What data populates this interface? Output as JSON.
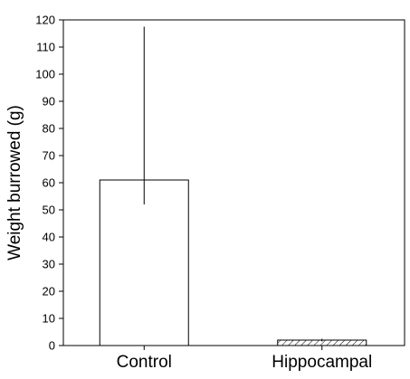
{
  "chart_data": {
    "type": "bar",
    "title": "",
    "xlabel": "",
    "ylabel": "Weight burrowed (g)",
    "ylim": [
      0,
      120
    ],
    "yticks": [
      0,
      10,
      20,
      30,
      40,
      50,
      60,
      70,
      80,
      90,
      100,
      110,
      120
    ],
    "categories": [
      "Control",
      "Hippocampal"
    ],
    "values": [
      61,
      2
    ],
    "error_bars": [
      {
        "low": 52,
        "high": 117.5
      },
      {
        "low": 1.5,
        "high": 2.5
      }
    ],
    "fills": [
      "solid-white",
      "hatched"
    ],
    "grid": false,
    "colors": {
      "bar_fill": "#ffffff",
      "stroke": "#000000",
      "hatch": "#000000"
    }
  }
}
